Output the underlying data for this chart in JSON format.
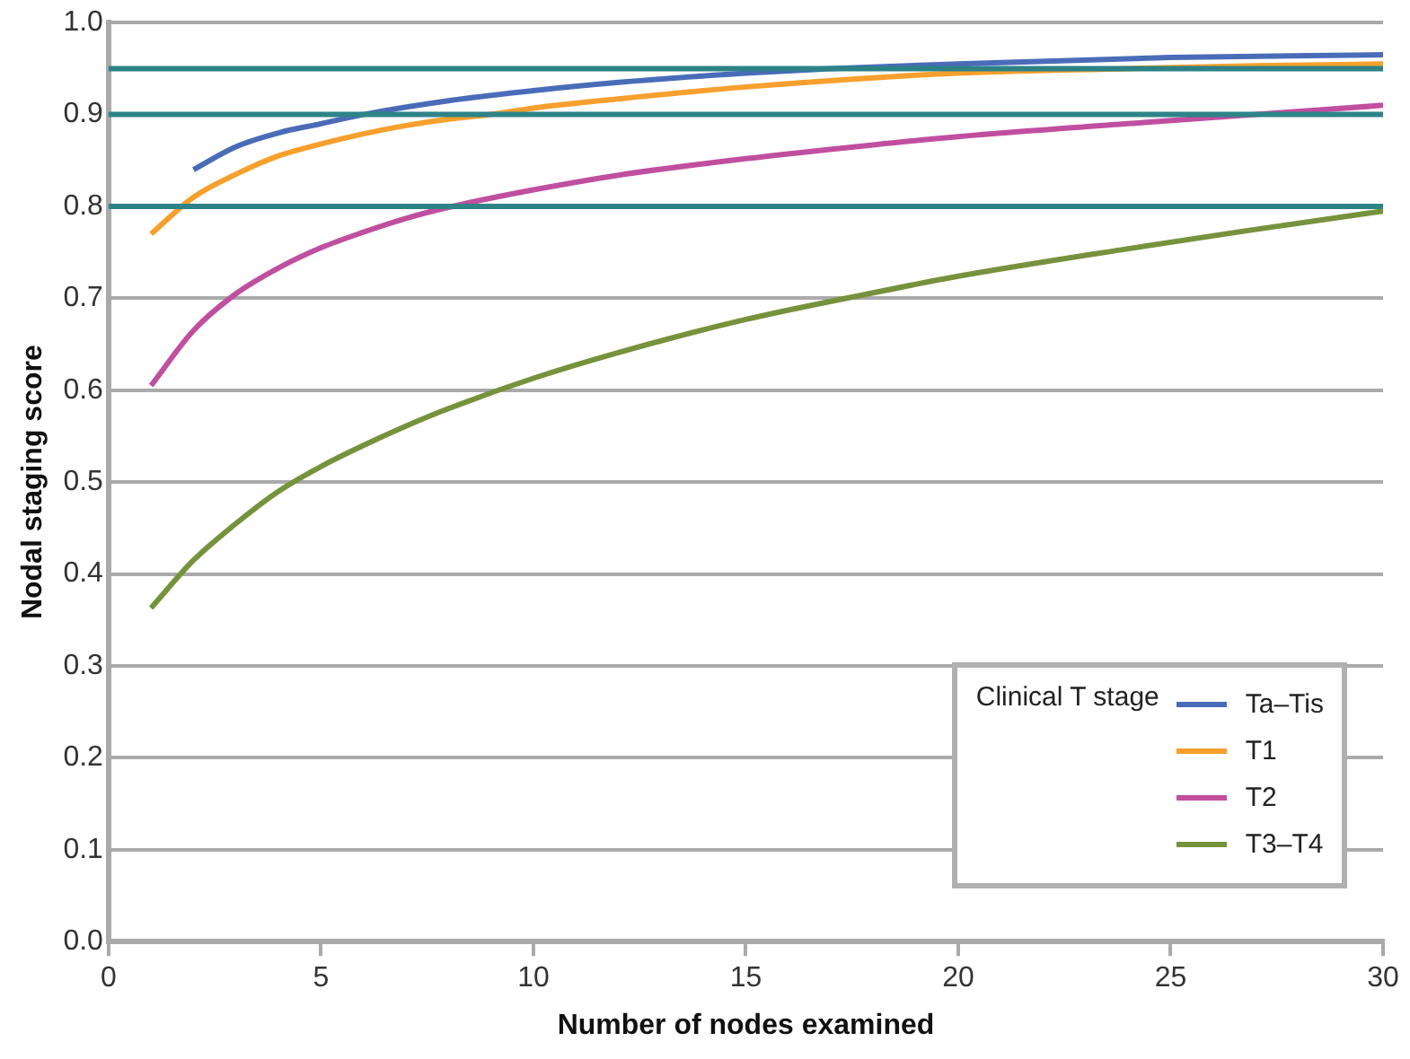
{
  "chart_data": {
    "type": "line",
    "xlabel": "Number of nodes examined",
    "ylabel": "Nodal staging score",
    "legend_title": "Clinical T stage",
    "legend": "bottom right",
    "grid": "y",
    "marker": "none",
    "line_style": "solid",
    "xlim": [
      0,
      30
    ],
    "xticks": [
      0,
      5,
      10,
      15,
      20,
      25,
      30
    ],
    "ylim": [
      0,
      1
    ],
    "yticks": [
      {
        "value": 0,
        "label": "0.0"
      },
      0.1,
      0.2,
      0.3,
      0.4,
      0.5,
      0.6,
      0.7,
      0.8,
      0.9,
      {
        "value": 1,
        "label": "1.0"
      }
    ],
    "ref_lines": [
      {
        "axis": "y",
        "value": 0.8,
        "color": "#2e8387"
      },
      {
        "axis": "y",
        "value": 0.9,
        "color": "#2e8488"
      },
      {
        "axis": "y",
        "value": 0.95,
        "color": "#2d8286"
      }
    ],
    "series": [
      {
        "name": "Ta–Tis",
        "color": "#4a6cb8",
        "x": [
          2,
          3,
          4,
          5,
          6,
          8,
          10,
          12,
          15,
          17,
          20,
          25,
          30
        ],
        "values": [
          0.84,
          0.865,
          0.88,
          0.89,
          0.9,
          0.915,
          0.926,
          0.935,
          0.945,
          0.95,
          0.955,
          0.962,
          0.965
        ]
      },
      {
        "name": "T1",
        "color": "#f7a02e",
        "x": [
          1,
          2,
          3,
          4,
          5,
          6,
          7,
          8,
          9,
          10,
          12,
          15,
          18,
          20,
          24,
          27,
          30
        ],
        "values": [
          0.77,
          0.81,
          0.835,
          0.855,
          0.868,
          0.879,
          0.888,
          0.895,
          0.9,
          0.907,
          0.917,
          0.93,
          0.94,
          0.945,
          0.95,
          0.953,
          0.955
        ]
      },
      {
        "name": "T2",
        "color": "#c04f9f",
        "x": [
          1,
          2,
          3,
          4,
          5,
          6,
          7,
          8,
          10,
          12,
          15,
          18,
          20,
          24,
          27,
          30
        ],
        "values": [
          0.605,
          0.665,
          0.705,
          0.733,
          0.755,
          0.772,
          0.787,
          0.799,
          0.818,
          0.834,
          0.852,
          0.867,
          0.876,
          0.89,
          0.9,
          0.91
        ]
      },
      {
        "name": "T3–T4",
        "color": "#76923c",
        "x": [
          1,
          2,
          3,
          4,
          5,
          6,
          7,
          8,
          10,
          12,
          15,
          18,
          20,
          24,
          27,
          30
        ],
        "values": [
          0.363,
          0.415,
          0.455,
          0.49,
          0.517,
          0.54,
          0.561,
          0.58,
          0.613,
          0.641,
          0.677,
          0.706,
          0.724,
          0.754,
          0.775,
          0.795
        ]
      }
    ]
  }
}
